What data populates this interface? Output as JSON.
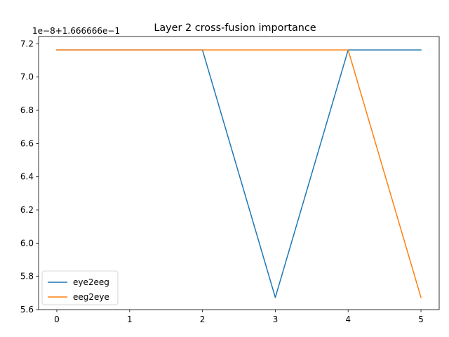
{
  "chart_data": {
    "type": "line",
    "title": "Layer 2 cross-fusion importance",
    "offset_label": "1e−8+1.666666e−1",
    "xlabel": "",
    "ylabel": "",
    "x": [
      0,
      1,
      2,
      3,
      4,
      5
    ],
    "xticks": [
      "0",
      "1",
      "2",
      "3",
      "4",
      "5"
    ],
    "xlim": [
      -0.25,
      5.25
    ],
    "yticks": [
      "5.6",
      "5.8",
      "6.0",
      "6.2",
      "6.4",
      "6.6",
      "6.8",
      "7.0",
      "7.2"
    ],
    "ylim": [
      5.6,
      7.244
    ],
    "series": [
      {
        "name": "eye2eeg",
        "color": "#1f77b4",
        "values": [
          7.163,
          7.163,
          7.163,
          5.673,
          7.163,
          7.163
        ]
      },
      {
        "name": "eeg2eye",
        "color": "#ff7f0e",
        "values": [
          7.163,
          7.163,
          7.163,
          7.163,
          7.163,
          5.673
        ]
      }
    ],
    "legend_position": "lower-left",
    "grid": false
  }
}
